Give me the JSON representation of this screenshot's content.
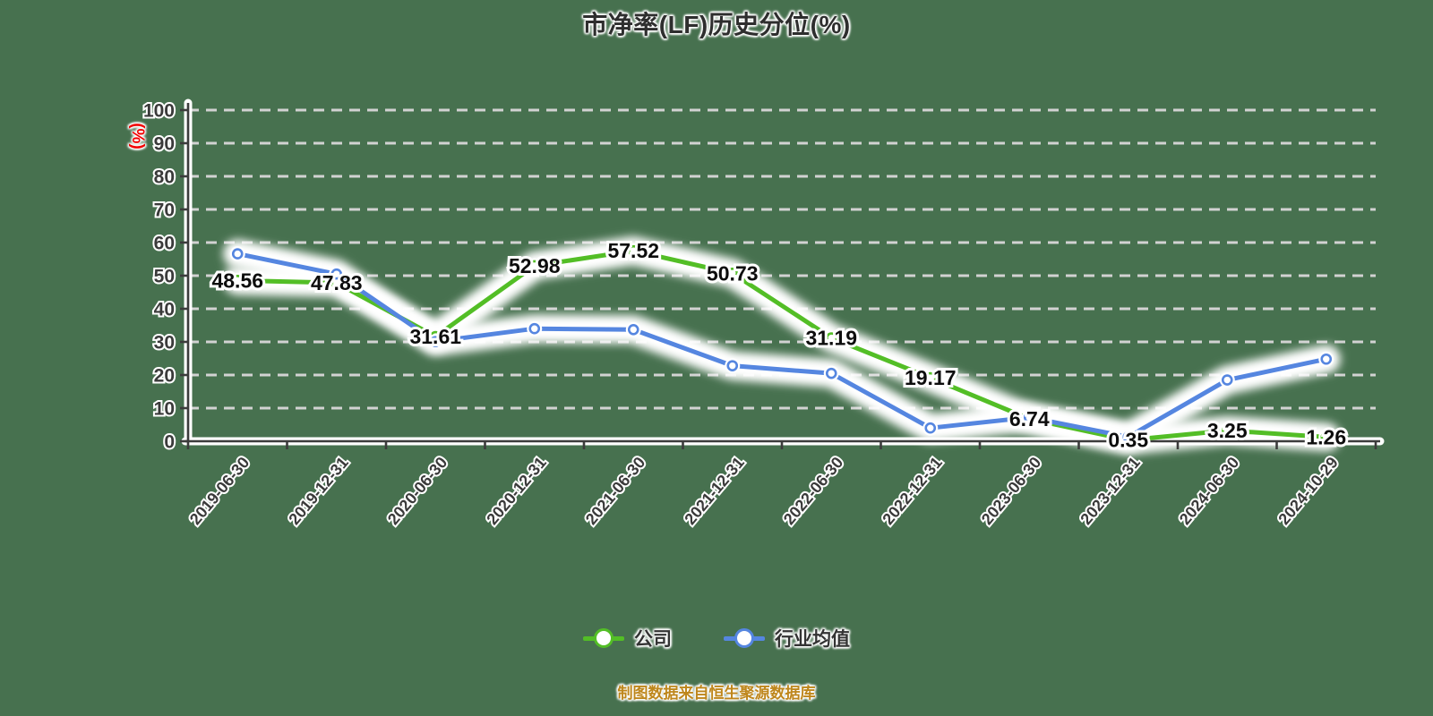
{
  "title": "市净率(LF)历史分位(%)",
  "source_note": "制图数据来自恒生聚源数据库",
  "y_axis": {
    "unit_label": "(%)"
  },
  "legend": [
    {
      "label": "公司",
      "color": "#53BE26"
    },
    {
      "label": "行业均值",
      "color": "#5586E0"
    }
  ],
  "colors": {
    "background": "#47714F",
    "gridline": "#D2D2D2",
    "axis": "#3C3C3C",
    "tick_label": "#3A3A3A",
    "data_label": "#0D0D0D",
    "title": "#2E2E2E",
    "unit_label": "#F20000",
    "source": "#BE861B",
    "marker_fill": "#FFFFFF"
  },
  "chart_data": {
    "type": "line",
    "title": "市净率(LF)历史分位(%)",
    "xlabel": "",
    "ylabel": "(%)",
    "ylim": [
      0,
      100
    ],
    "yticks": [
      0,
      10,
      20,
      30,
      40,
      50,
      60,
      70,
      80,
      90,
      100
    ],
    "grid": "horizontal-dashed",
    "legend_position": "bottom",
    "categories": [
      "2019-06-30",
      "2019-12-31",
      "2020-06-30",
      "2020-12-31",
      "2021-06-30",
      "2021-12-31",
      "2022-06-30",
      "2022-12-31",
      "2023-06-30",
      "2023-12-31",
      "2024-06-30",
      "2024-10-29"
    ],
    "series": [
      {
        "name": "公司",
        "color": "#53BE26",
        "point_labels": true,
        "values": [
          48.56,
          47.83,
          31.61,
          52.98,
          57.52,
          50.73,
          31.19,
          19.17,
          6.74,
          0.35,
          3.25,
          1.26
        ]
      },
      {
        "name": "行业均值",
        "color": "#5586E0",
        "point_labels": false,
        "values": [
          56.6,
          50.5,
          30.1,
          34.0,
          33.7,
          22.8,
          20.5,
          4.0,
          7.2,
          1.3,
          18.5,
          24.8
        ]
      }
    ]
  }
}
